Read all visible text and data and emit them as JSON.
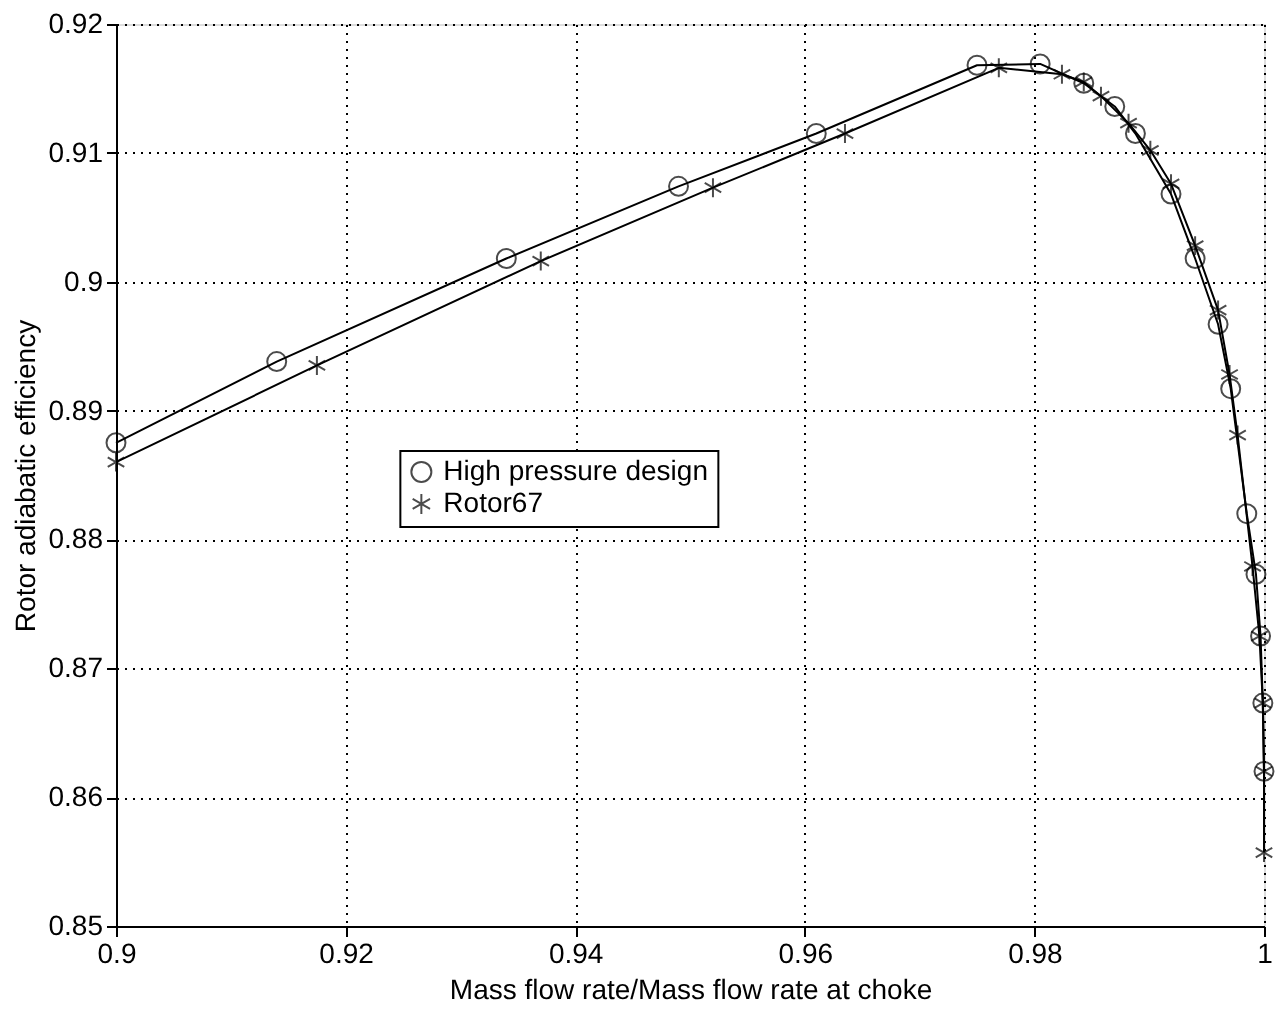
{
  "chart_data": {
    "type": "line",
    "xlabel": "Mass flow rate/Mass flow rate at choke",
    "ylabel": "Rotor adiabatic efficiency",
    "xlim": [
      0.9,
      1
    ],
    "xticks": [
      0.9,
      0.92,
      0.94,
      0.96,
      0.98,
      1
    ],
    "ylim": [
      0.85,
      0.92
    ],
    "yticks": [
      0.85,
      0.86,
      0.87,
      0.88,
      0.89,
      0.9,
      0.91,
      0.92
    ],
    "grid": true,
    "legend": "center",
    "line_style": "solid",
    "series": [
      {
        "name": "High pressure design",
        "color": "#000000",
        "marker": "circle",
        "x": [
          0.9,
          0.914,
          0.934,
          0.949,
          0.961,
          0.975,
          0.9805,
          0.9843,
          0.987,
          0.9888,
          0.9919,
          0.994,
          0.996,
          0.9971,
          0.9985,
          0.9993,
          0.9997,
          0.9999,
          1.0
        ],
        "values": [
          0.8875,
          0.8938,
          0.9018,
          0.9074,
          0.9115,
          0.9168,
          0.9169,
          0.9154,
          0.9136,
          0.9115,
          0.9068,
          0.9018,
          0.8967,
          0.8917,
          0.882,
          0.8773,
          0.8725,
          0.8673,
          0.862
        ]
      },
      {
        "name": "Rotor67",
        "color": "#000000",
        "marker": "cross",
        "x": [
          0.9,
          0.9175,
          0.937,
          0.952,
          0.9635,
          0.9769,
          0.9824,
          0.9843,
          0.9858,
          0.9882,
          0.9901,
          0.9919,
          0.994,
          0.996,
          0.997,
          0.9977,
          0.999,
          0.9996,
          0.9999,
          1.0,
          1.0
        ],
        "values": [
          0.886,
          0.8935,
          0.9016,
          0.9073,
          0.9115,
          0.9166,
          0.9161,
          0.9155,
          0.9144,
          0.9123,
          0.9102,
          0.9076,
          0.9028,
          0.8978,
          0.8928,
          0.8881,
          0.8779,
          0.8725,
          0.8673,
          0.862,
          0.8557
        ]
      }
    ]
  }
}
